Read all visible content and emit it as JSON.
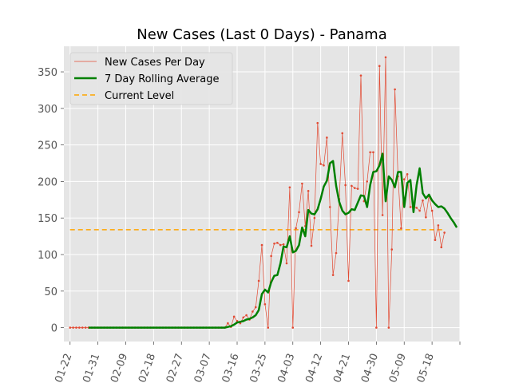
{
  "chart_data": {
    "type": "line",
    "title": "New Cases (Last 0 Days) - Panama",
    "xlabel": "",
    "ylabel": "",
    "grid": true,
    "legend_position": "top-left",
    "xlim": [
      "2020-01-20",
      "2020-05-27"
    ],
    "ylim": [
      -19,
      385
    ],
    "x_ticks": [
      "01-22",
      "01-31",
      "02-09",
      "02-18",
      "02-27",
      "03-07",
      "03-16",
      "03-25",
      "04-03",
      "04-12",
      "04-21",
      "04-30",
      "05-09",
      "05-18",
      ""
    ],
    "y_ticks": [
      0,
      50,
      100,
      150,
      200,
      250,
      300,
      350
    ],
    "colors": {
      "plot_background": "#e5e5e5",
      "grid": "#ffffff",
      "daily": "#e24a33",
      "rolling": "#008000",
      "current": "#ffa500",
      "text": "#555555"
    },
    "current_level": 134,
    "series": [
      {
        "name": "New Cases Per Day",
        "style": "thin-line-with-dots",
        "start_date": "2020-01-22",
        "values": [
          0,
          0,
          0,
          0,
          0,
          0,
          0,
          0,
          0,
          0,
          0,
          0,
          0,
          0,
          0,
          0,
          0,
          0,
          0,
          0,
          0,
          0,
          0,
          0,
          0,
          0,
          0,
          0,
          0,
          0,
          0,
          0,
          0,
          0,
          0,
          0,
          0,
          0,
          0,
          0,
          0,
          0,
          0,
          0,
          0,
          0,
          0,
          0,
          0,
          0,
          0,
          6,
          1,
          15,
          9,
          6,
          14,
          17,
          11,
          22,
          28,
          64,
          113,
          32,
          0,
          98,
          115,
          116,
          113,
          114,
          88,
          192,
          0,
          136,
          158,
          197,
          139,
          187,
          112,
          150,
          280,
          224,
          222,
          260,
          165,
          72,
          102,
          176,
          266,
          195,
          64,
          194,
          191,
          190,
          345,
          173,
          200,
          240,
          240,
          0,
          358,
          154,
          370,
          0,
          107,
          326,
          207,
          136,
          203,
          210,
          165,
          166,
          164,
          160,
          174,
          151,
          181,
          160,
          120,
          140,
          110,
          130
        ]
      },
      {
        "name": "7 Day Rolling Average",
        "style": "thick-line",
        "start_date": "2020-01-28",
        "values": [
          0,
          0,
          0,
          0,
          0,
          0,
          0,
          0,
          0,
          0,
          0,
          0,
          0,
          0,
          0,
          0,
          0,
          0,
          0,
          0,
          0,
          0,
          0,
          0,
          0,
          0,
          0,
          0,
          0,
          0,
          0,
          0,
          0,
          0,
          0,
          0,
          0,
          0,
          0,
          0,
          0,
          0,
          0,
          0,
          0,
          1,
          2,
          4,
          7,
          8,
          9,
          11,
          12,
          14,
          17,
          24,
          46,
          52,
          48,
          62,
          71,
          72,
          88,
          111,
          110,
          125,
          103,
          105,
          113,
          137,
          125,
          161,
          156,
          155,
          162,
          176,
          193,
          201,
          225,
          228,
          194,
          172,
          160,
          155,
          157,
          162,
          161,
          171,
          181,
          180,
          165,
          195,
          213,
          214,
          222,
          238,
          173,
          207,
          202,
          192,
          213,
          213,
          165,
          198,
          202,
          158,
          195,
          218,
          184,
          177,
          182,
          174,
          169,
          165,
          166,
          163,
          157,
          150,
          144,
          137
        ]
      },
      {
        "name": "Current Level",
        "style": "dashed-line"
      }
    ]
  }
}
